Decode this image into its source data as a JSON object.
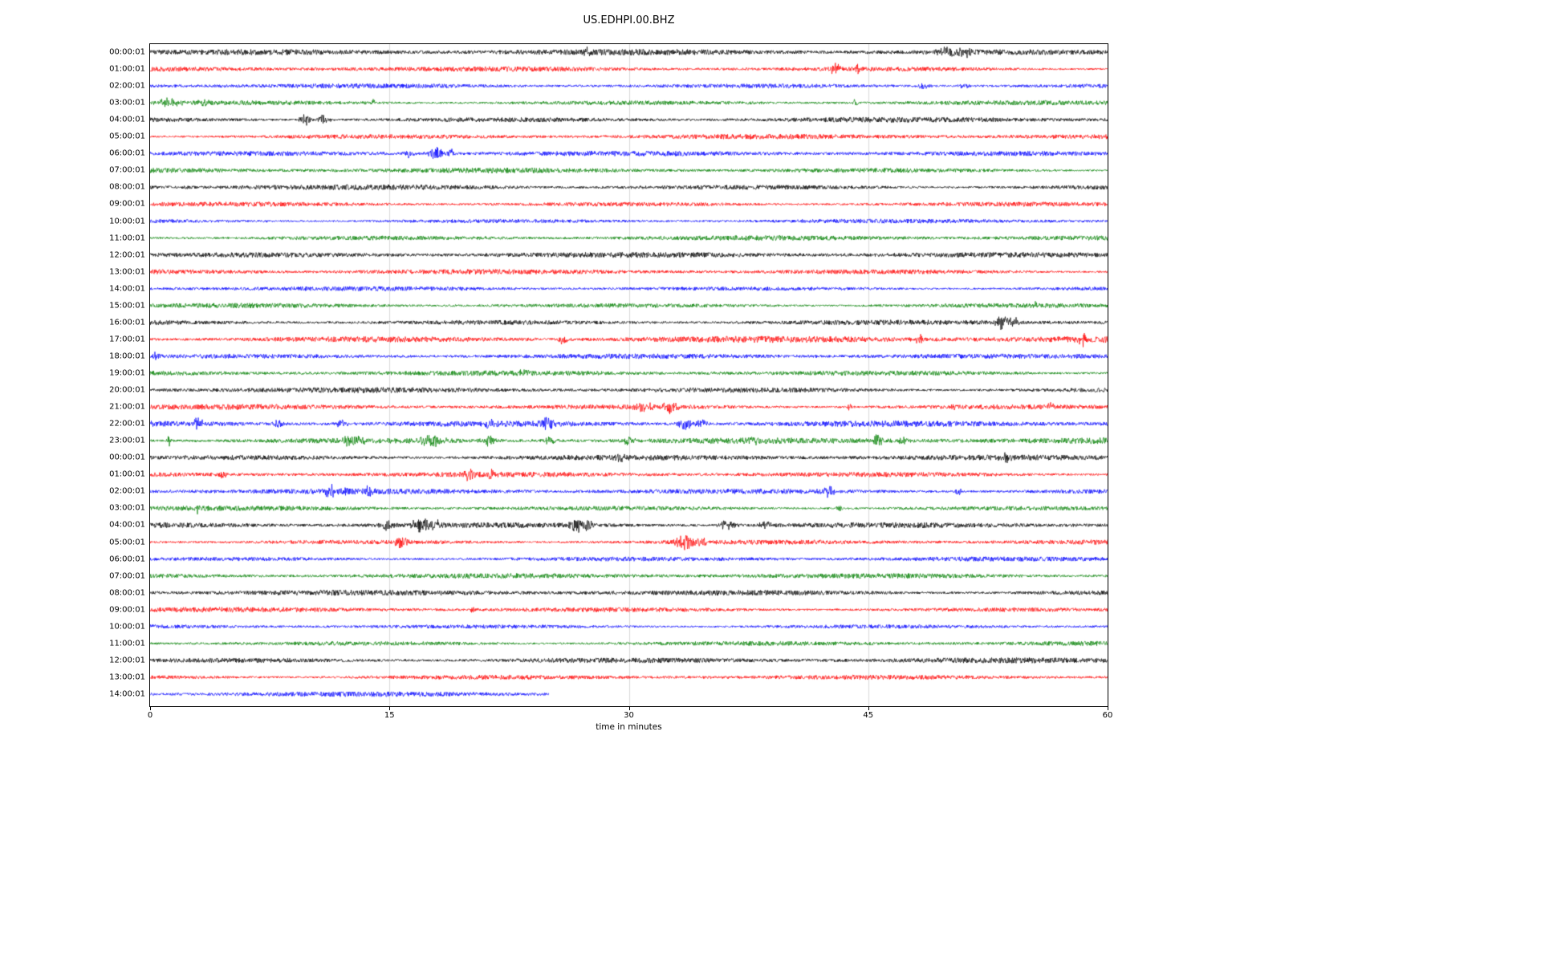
{
  "title": "US.EDHPI.00.BHZ",
  "chart_data": {
    "type": "line",
    "subtype": "helicorder-seismogram",
    "title": "US.EDHPI.00.BHZ",
    "xlabel": "time in minutes",
    "ylabel": "",
    "xlim": [
      0,
      60
    ],
    "xticks": [
      0,
      15,
      30,
      45,
      60
    ],
    "grid_x": [
      15,
      30,
      45
    ],
    "grid_color": "#d9d9d9",
    "color_cycle": [
      "#000000",
      "#ff0000",
      "#0000ff",
      "#008000"
    ],
    "rows": [
      {
        "label": "00:00:01",
        "color": "#000000",
        "noise": 1.3,
        "duration": 60,
        "events": [
          {
            "t": 27.4,
            "w": 0.15,
            "a": 2.8
          },
          {
            "t": 50.3,
            "w": 0.6,
            "a": 3.5
          },
          {
            "t": 51.2,
            "w": 0.3,
            "a": 2.5
          }
        ]
      },
      {
        "label": "01:00:01",
        "color": "#ff0000",
        "noise": 1.1,
        "duration": 60,
        "events": [
          {
            "t": 42.9,
            "w": 0.2,
            "a": 4.5
          },
          {
            "t": 44.3,
            "w": 0.15,
            "a": 3.5
          }
        ]
      },
      {
        "label": "02:00:01",
        "color": "#0000ff",
        "noise": 1.1,
        "duration": 60,
        "events": [
          {
            "t": 48.4,
            "w": 0.4,
            "a": 2.0
          },
          {
            "t": 51.0,
            "w": 0.3,
            "a": 1.5
          }
        ]
      },
      {
        "label": "03:00:01",
        "color": "#008000",
        "noise": 1.1,
        "duration": 60,
        "events": [
          {
            "t": 1.2,
            "w": 0.4,
            "a": 3.5
          },
          {
            "t": 3.3,
            "w": 0.25,
            "a": 2.5
          },
          {
            "t": 14.0,
            "w": 0.08,
            "a": 3.0
          },
          {
            "t": 44.2,
            "w": 0.08,
            "a": 3.0
          }
        ]
      },
      {
        "label": "04:00:01",
        "color": "#000000",
        "noise": 1.2,
        "duration": 60,
        "events": [
          {
            "t": 9.7,
            "w": 0.25,
            "a": 4.0
          },
          {
            "t": 10.8,
            "w": 0.3,
            "a": 3.5
          }
        ]
      },
      {
        "label": "05:00:01",
        "color": "#ff0000",
        "noise": 1.1,
        "duration": 60,
        "events": []
      },
      {
        "label": "06:00:01",
        "color": "#0000ff",
        "noise": 1.1,
        "duration": 60,
        "events": [
          {
            "t": 16.2,
            "w": 0.2,
            "a": 3.0
          },
          {
            "t": 17.9,
            "w": 0.35,
            "a": 4.5
          },
          {
            "t": 18.8,
            "w": 0.2,
            "a": 3.0
          }
        ]
      },
      {
        "label": "07:00:01",
        "color": "#008000",
        "noise": 1.1,
        "duration": 60,
        "events": []
      },
      {
        "label": "08:00:01",
        "color": "#000000",
        "noise": 1.2,
        "duration": 60,
        "events": []
      },
      {
        "label": "09:00:01",
        "color": "#ff0000",
        "noise": 1.1,
        "duration": 60,
        "events": []
      },
      {
        "label": "10:00:01",
        "color": "#0000ff",
        "noise": 1.0,
        "duration": 60,
        "events": [
          {
            "t": 7.3,
            "w": 0.06,
            "a": 2.5
          }
        ]
      },
      {
        "label": "11:00:01",
        "color": "#008000",
        "noise": 1.1,
        "duration": 60,
        "events": []
      },
      {
        "label": "12:00:01",
        "color": "#000000",
        "noise": 1.2,
        "duration": 60,
        "events": []
      },
      {
        "label": "13:00:01",
        "color": "#ff0000",
        "noise": 1.1,
        "duration": 60,
        "events": []
      },
      {
        "label": "14:00:01",
        "color": "#0000ff",
        "noise": 1.0,
        "duration": 60,
        "events": []
      },
      {
        "label": "15:00:01",
        "color": "#008000",
        "noise": 1.1,
        "duration": 60,
        "events": [
          {
            "t": 55.5,
            "w": 0.08,
            "a": 4.0
          }
        ]
      },
      {
        "label": "16:00:01",
        "color": "#000000",
        "noise": 1.2,
        "duration": 60,
        "events": [
          {
            "t": 53.4,
            "w": 0.3,
            "a": 6.0
          },
          {
            "t": 54.1,
            "w": 0.2,
            "a": 4.0
          }
        ]
      },
      {
        "label": "17:00:01",
        "color": "#ff0000",
        "noise": 1.5,
        "duration": 60,
        "events": [
          {
            "t": 25.9,
            "w": 0.2,
            "a": 4.0
          },
          {
            "t": 48.2,
            "w": 0.15,
            "a": 3.5
          },
          {
            "t": 58.5,
            "w": 0.2,
            "a": 4.5
          }
        ]
      },
      {
        "label": "18:00:01",
        "color": "#0000ff",
        "noise": 1.1,
        "duration": 60,
        "events": [
          {
            "t": 0.4,
            "w": 0.15,
            "a": 3.5
          }
        ]
      },
      {
        "label": "19:00:01",
        "color": "#008000",
        "noise": 1.1,
        "duration": 60,
        "events": [
          {
            "t": 23.4,
            "w": 0.2,
            "a": 2.0
          }
        ]
      },
      {
        "label": "20:00:01",
        "color": "#000000",
        "noise": 1.2,
        "duration": 60,
        "events": []
      },
      {
        "label": "21:00:01",
        "color": "#ff0000",
        "noise": 1.2,
        "duration": 60,
        "events": [
          {
            "t": 31.0,
            "w": 0.4,
            "a": 3.5
          },
          {
            "t": 32.6,
            "w": 0.3,
            "a": 5.0
          },
          {
            "t": 43.8,
            "w": 0.1,
            "a": 2.5
          },
          {
            "t": 50.3,
            "w": 0.1,
            "a": 2.5
          },
          {
            "t": 56.4,
            "w": 0.15,
            "a": 3.0
          }
        ]
      },
      {
        "label": "22:00:01",
        "color": "#0000ff",
        "noise": 1.5,
        "duration": 60,
        "events": [
          {
            "t": 3.0,
            "w": 0.2,
            "a": 4.0
          },
          {
            "t": 8.1,
            "w": 0.25,
            "a": 3.0
          },
          {
            "t": 12.0,
            "w": 0.2,
            "a": 3.5
          },
          {
            "t": 21.3,
            "w": 0.25,
            "a": 3.0
          },
          {
            "t": 24.9,
            "w": 0.4,
            "a": 3.5
          },
          {
            "t": 33.6,
            "w": 0.5,
            "a": 4.0
          },
          {
            "t": 34.6,
            "w": 0.2,
            "a": 3.0
          }
        ]
      },
      {
        "label": "23:00:01",
        "color": "#008000",
        "noise": 1.4,
        "duration": 60,
        "events": [
          {
            "t": 1.2,
            "w": 0.08,
            "a": 4.0
          },
          {
            "t": 12.6,
            "w": 0.5,
            "a": 4.0
          },
          {
            "t": 17.6,
            "w": 0.5,
            "a": 4.0
          },
          {
            "t": 21.3,
            "w": 0.3,
            "a": 3.5
          },
          {
            "t": 25.0,
            "w": 0.3,
            "a": 3.0
          },
          {
            "t": 30.0,
            "w": 0.25,
            "a": 3.0
          },
          {
            "t": 37.8,
            "w": 0.2,
            "a": 2.5
          },
          {
            "t": 45.6,
            "w": 0.15,
            "a": 5.0
          },
          {
            "t": 47.2,
            "w": 0.2,
            "a": 2.5
          }
        ]
      },
      {
        "label": "00:00:01",
        "color": "#000000",
        "noise": 1.2,
        "duration": 60,
        "events": [
          {
            "t": 29.4,
            "w": 0.2,
            "a": 2.5
          },
          {
            "t": 53.6,
            "w": 0.3,
            "a": 2.5
          }
        ]
      },
      {
        "label": "01:00:01",
        "color": "#ff0000",
        "noise": 1.1,
        "duration": 60,
        "events": [
          {
            "t": 4.6,
            "w": 0.2,
            "a": 2.5
          },
          {
            "t": 20.1,
            "w": 0.3,
            "a": 4.5
          },
          {
            "t": 21.4,
            "w": 0.15,
            "a": 3.0
          }
        ]
      },
      {
        "label": "02:00:01",
        "color": "#0000ff",
        "noise": 1.2,
        "duration": 60,
        "events": [
          {
            "t": 11.3,
            "w": 0.25,
            "a": 4.0
          },
          {
            "t": 12.1,
            "w": 0.15,
            "a": 3.0
          },
          {
            "t": 13.7,
            "w": 0.15,
            "a": 3.0
          },
          {
            "t": 42.5,
            "w": 0.35,
            "a": 3.5
          },
          {
            "t": 50.7,
            "w": 0.2,
            "a": 2.5
          }
        ]
      },
      {
        "label": "03:00:01",
        "color": "#008000",
        "noise": 1.1,
        "duration": 60,
        "events": [
          {
            "t": 3.0,
            "w": 0.06,
            "a": 4.5
          },
          {
            "t": 43.2,
            "w": 0.15,
            "a": 2.5
          }
        ]
      },
      {
        "label": "04:00:01",
        "color": "#000000",
        "noise": 1.4,
        "duration": 60,
        "events": [
          {
            "t": 14.8,
            "w": 0.3,
            "a": 3.0
          },
          {
            "t": 17.0,
            "w": 0.4,
            "a": 5.0
          },
          {
            "t": 17.9,
            "w": 0.25,
            "a": 4.0
          },
          {
            "t": 26.7,
            "w": 0.3,
            "a": 5.0
          },
          {
            "t": 27.4,
            "w": 0.2,
            "a": 4.0
          },
          {
            "t": 36.1,
            "w": 0.4,
            "a": 3.0
          },
          {
            "t": 38.6,
            "w": 0.3,
            "a": 2.5
          }
        ]
      },
      {
        "label": "05:00:01",
        "color": "#ff0000",
        "noise": 1.1,
        "duration": 60,
        "events": [
          {
            "t": 15.7,
            "w": 0.25,
            "a": 5.0
          },
          {
            "t": 33.5,
            "w": 0.5,
            "a": 5.5
          },
          {
            "t": 34.6,
            "w": 0.2,
            "a": 4.0
          }
        ]
      },
      {
        "label": "06:00:01",
        "color": "#0000ff",
        "noise": 1.0,
        "duration": 60,
        "events": []
      },
      {
        "label": "07:00:01",
        "color": "#008000",
        "noise": 1.1,
        "duration": 60,
        "events": []
      },
      {
        "label": "08:00:01",
        "color": "#000000",
        "noise": 1.2,
        "duration": 60,
        "events": []
      },
      {
        "label": "09:00:01",
        "color": "#ff0000",
        "noise": 1.1,
        "duration": 60,
        "events": [
          {
            "t": 20.2,
            "w": 0.08,
            "a": 2.0
          }
        ]
      },
      {
        "label": "10:00:01",
        "color": "#0000ff",
        "noise": 1.0,
        "duration": 60,
        "events": []
      },
      {
        "label": "11:00:01",
        "color": "#008000",
        "noise": 1.1,
        "duration": 60,
        "events": []
      },
      {
        "label": "12:00:01",
        "color": "#000000",
        "noise": 1.2,
        "duration": 60,
        "events": []
      },
      {
        "label": "13:00:01",
        "color": "#ff0000",
        "noise": 1.0,
        "duration": 60,
        "events": []
      },
      {
        "label": "14:00:01",
        "color": "#0000ff",
        "noise": 1.1,
        "duration": 25,
        "events": []
      }
    ]
  }
}
